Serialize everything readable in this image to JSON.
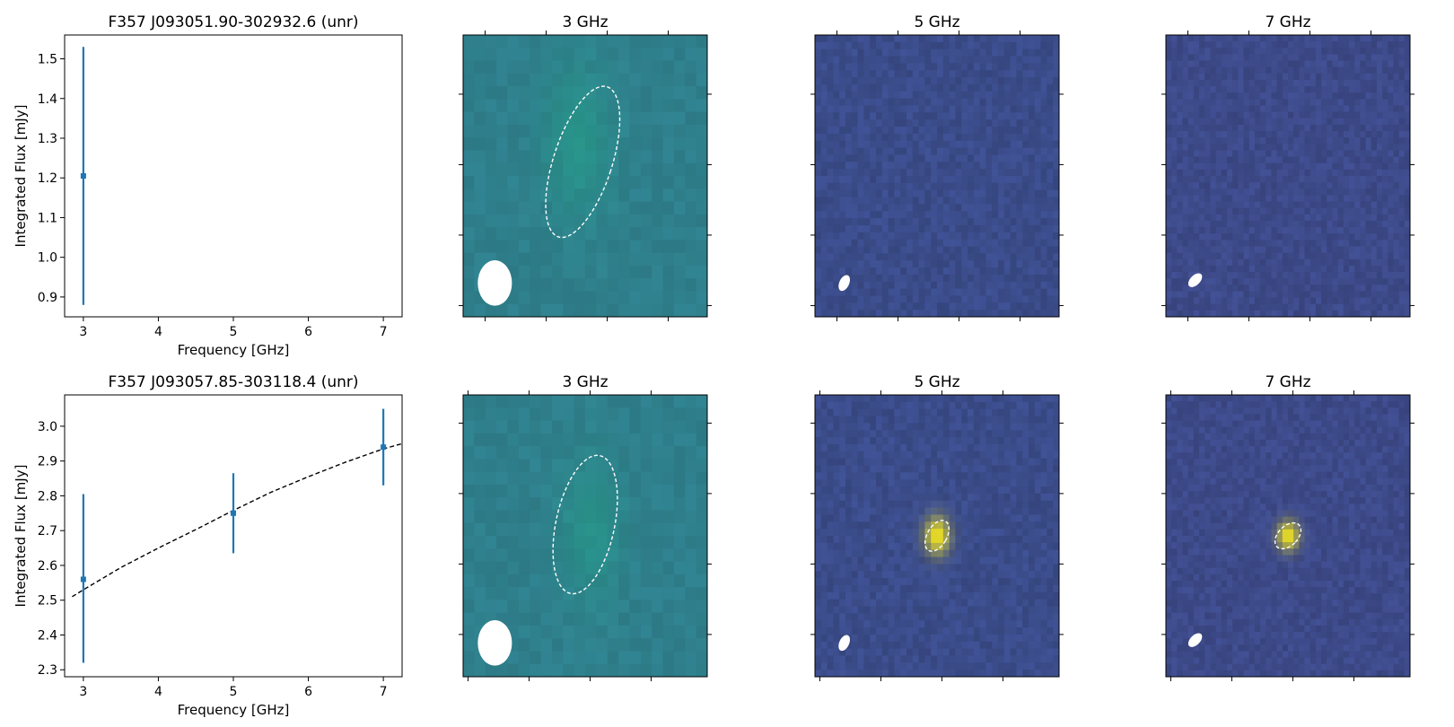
{
  "figure": {
    "rows": [
      {
        "spectrum": {
          "type": "scatter",
          "title": "F357 J093051.90-302932.6 (unr)",
          "xlabel": "Frequency [GHz]",
          "ylabel": "Integrated Flux [mJy]",
          "xlim": [
            2.75,
            7.25
          ],
          "ylim": [
            0.85,
            1.56
          ],
          "xticks": [
            3,
            4,
            5,
            6,
            7
          ],
          "yticks": [
            0.9,
            1.0,
            1.1,
            1.2,
            1.3,
            1.4,
            1.5
          ],
          "ytick_labels": [
            "0.9",
            "1.0",
            "1.1",
            "1.2",
            "1.3",
            "1.4",
            "1.5"
          ],
          "points": [
            {
              "x": 3,
              "y": 1.205,
              "err_low": 0.88,
              "err_high": 1.53
            }
          ],
          "fit": null,
          "color": "#1f77b4"
        },
        "cutouts": [
          {
            "title": "3 GHz",
            "background": "#2f7f8c",
            "grid": [
              22,
              22
            ],
            "seed": 11,
            "blobs": [
              {
                "cx": 0.47,
                "cy": 0.38,
                "sx": 0.1,
                "sy": 0.2,
                "color": "#22a386",
                "a": 0.55
              }
            ],
            "ellipse": {
              "cx": 0.49,
              "cy": 0.45,
              "rx": 0.12,
              "ry": 0.28,
              "rot": 18
            },
            "beam": {
              "cx": 0.13,
              "cy": 0.88,
              "rx": 0.07,
              "ry": 0.07,
              "rot": 0
            },
            "xticks": [
              0.09,
              0.34,
              0.59,
              0.84
            ],
            "yticks": [
              0.21,
              0.46,
              0.71,
              0.96
            ],
            "noise": 0.05
          },
          {
            "title": "5 GHz",
            "background": "#3b4c8a",
            "grid": [
              40,
              40
            ],
            "seed": 23,
            "blobs": [],
            "ellipse": null,
            "beam": {
              "cx": 0.12,
              "cy": 0.88,
              "rx": 0.02,
              "ry": 0.03,
              "rot": 25
            },
            "xticks": [
              0.09,
              0.34,
              0.59,
              0.84
            ],
            "yticks": [
              0.21,
              0.46,
              0.71,
              0.96
            ],
            "noise": 0.09
          },
          {
            "title": "7 GHz",
            "background": "#3d4a89",
            "grid": [
              44,
              44
            ],
            "seed": 37,
            "blobs": [],
            "ellipse": null,
            "beam": {
              "cx": 0.12,
              "cy": 0.87,
              "rx": 0.02,
              "ry": 0.03,
              "rot": 45
            },
            "xticks": [
              0.09,
              0.34,
              0.59,
              0.84
            ],
            "yticks": [
              0.21,
              0.46,
              0.71,
              0.96
            ],
            "noise": 0.09
          }
        ]
      },
      {
        "spectrum": {
          "type": "scatter",
          "title": "F357 J093057.85-303118.4 (unr)",
          "xlabel": "Frequency [GHz]",
          "ylabel": "Integrated Flux [mJy]",
          "xlim": [
            2.75,
            7.25
          ],
          "ylim": [
            2.28,
            3.09
          ],
          "xticks": [
            3,
            4,
            5,
            6,
            7
          ],
          "yticks": [
            2.3,
            2.4,
            2.5,
            2.6,
            2.7,
            2.8,
            2.9,
            3.0
          ],
          "ytick_labels": [
            "2.3",
            "2.4",
            "2.5",
            "2.6",
            "2.7",
            "2.8",
            "2.9",
            "3.0"
          ],
          "points": [
            {
              "x": 3,
              "y": 2.56,
              "err_low": 2.32,
              "err_high": 2.805
            },
            {
              "x": 5,
              "y": 2.75,
              "err_low": 2.635,
              "err_high": 2.865
            },
            {
              "x": 7,
              "y": 2.94,
              "err_low": 2.83,
              "err_high": 3.05
            }
          ],
          "fit": {
            "x": [
              2.85,
              3.0,
              3.5,
              4.0,
              4.5,
              5.0,
              5.5,
              6.0,
              6.5,
              7.0,
              7.25
            ],
            "y": [
              2.51,
              2.53,
              2.594,
              2.65,
              2.703,
              2.758,
              2.81,
              2.855,
              2.897,
              2.935,
              2.95
            ]
          },
          "color": "#1f77b4"
        },
        "cutouts": [
          {
            "title": "3 GHz",
            "background": "#2f7f8c",
            "grid": [
              22,
              22
            ],
            "seed": 51,
            "blobs": [
              {
                "cx": 0.52,
                "cy": 0.48,
                "sx": 0.09,
                "sy": 0.18,
                "color": "#22a386",
                "a": 0.5
              }
            ],
            "ellipse": {
              "cx": 0.5,
              "cy": 0.46,
              "rx": 0.12,
              "ry": 0.25,
              "rot": 12
            },
            "beam": {
              "cx": 0.13,
              "cy": 0.88,
              "rx": 0.07,
              "ry": 0.07,
              "rot": 0
            },
            "xticks": [
              0.02,
              0.27,
              0.52,
              0.77
            ],
            "yticks": [
              0.1,
              0.35,
              0.6,
              0.85
            ],
            "noise": 0.05
          },
          {
            "title": "5 GHz",
            "background": "#3b4c8a",
            "grid": [
              40,
              40
            ],
            "seed": 67,
            "blobs": [
              {
                "cx": 0.5,
                "cy": 0.5,
                "sx": 0.035,
                "sy": 0.045,
                "color": "#f4e61e",
                "a": 1.0
              }
            ],
            "ellipse": {
              "cx": 0.5,
              "cy": 0.5,
              "rx": 0.04,
              "ry": 0.06,
              "rot": 30
            },
            "beam": {
              "cx": 0.12,
              "cy": 0.88,
              "rx": 0.02,
              "ry": 0.03,
              "rot": 25
            },
            "xticks": [
              0.02,
              0.27,
              0.52,
              0.77
            ],
            "yticks": [
              0.1,
              0.35,
              0.6,
              0.85
            ],
            "noise": 0.09
          },
          {
            "title": "7 GHz",
            "background": "#3d4a89",
            "grid": [
              44,
              44
            ],
            "seed": 79,
            "blobs": [
              {
                "cx": 0.5,
                "cy": 0.5,
                "sx": 0.03,
                "sy": 0.035,
                "color": "#f4e61e",
                "a": 1.0
              }
            ],
            "ellipse": {
              "cx": 0.5,
              "cy": 0.5,
              "rx": 0.04,
              "ry": 0.055,
              "rot": 45
            },
            "beam": {
              "cx": 0.12,
              "cy": 0.87,
              "rx": 0.02,
              "ry": 0.03,
              "rot": 45
            },
            "xticks": [
              0.02,
              0.27,
              0.52,
              0.77
            ],
            "yticks": [
              0.1,
              0.35,
              0.6,
              0.85
            ],
            "noise": 0.09
          }
        ]
      }
    ]
  },
  "chart_data": [
    {
      "type": "scatter",
      "title": "F357 J093051.90-302932.6 (unr)",
      "xlabel": "Frequency [GHz]",
      "ylabel": "Integrated Flux [mJy]",
      "xlim": [
        2.75,
        7.25
      ],
      "ylim": [
        0.85,
        1.56
      ],
      "series": [
        {
          "x": [
            3
          ],
          "y": [
            1.205
          ],
          "yerr_low": [
            0.88
          ],
          "yerr_high": [
            1.53
          ]
        }
      ]
    },
    {
      "type": "scatter",
      "title": "F357 J093057.85-303118.4 (unr)",
      "xlabel": "Frequency [GHz]",
      "ylabel": "Integrated Flux [mJy]",
      "xlim": [
        2.75,
        7.25
      ],
      "ylim": [
        2.28,
        3.09
      ],
      "series": [
        {
          "x": [
            3,
            5,
            7
          ],
          "y": [
            2.56,
            2.75,
            2.94
          ],
          "yerr_low": [
            2.32,
            2.635,
            2.83
          ],
          "yerr_high": [
            2.805,
            2.865,
            3.05
          ]
        },
        {
          "x": [
            2.85,
            3.0,
            3.5,
            4.0,
            4.5,
            5.0,
            5.5,
            6.0,
            6.5,
            7.0,
            7.25
          ],
          "y": [
            2.51,
            2.53,
            2.594,
            2.65,
            2.703,
            2.758,
            2.81,
            2.855,
            2.897,
            2.935,
            2.95
          ],
          "style": "dashed"
        }
      ]
    },
    {
      "type": "heatmap",
      "title": "3 GHz"
    },
    {
      "type": "heatmap",
      "title": "5 GHz"
    },
    {
      "type": "heatmap",
      "title": "7 GHz"
    }
  ]
}
